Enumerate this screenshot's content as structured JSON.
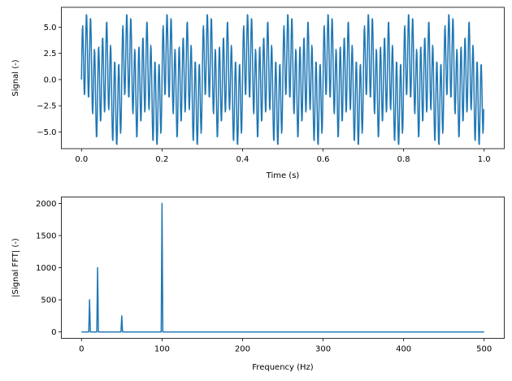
{
  "chart_data": [
    {
      "type": "line",
      "title": "",
      "xlabel": "Time (s)",
      "ylabel": "Signal (-)",
      "xlim": [
        -0.05,
        1.05
      ],
      "ylim": [
        -6.6,
        6.9
      ],
      "xticks": [
        "0.0",
        "0.2",
        "0.4",
        "0.6",
        "0.8",
        "1.0"
      ],
      "xtick_values": [
        0,
        0.2,
        0.4,
        0.6,
        0.8,
        1.0
      ],
      "yticks": [
        "−5.0",
        "−2.5",
        "0.0",
        "2.5",
        "5.0"
      ],
      "ytick_values": [
        -5,
        -2.5,
        0,
        2.5,
        5
      ],
      "sampling_rate_hz": 1000,
      "n_samples": 1000,
      "components": [
        {
          "frequency_hz": 10,
          "amplitude": 1
        },
        {
          "frequency_hz": 20,
          "amplitude": 2
        },
        {
          "frequency_hz": 50,
          "amplitude": 0.5
        },
        {
          "frequency_hz": 100,
          "amplitude": 4
        }
      ],
      "color": "#1f77b4",
      "grid": false
    },
    {
      "type": "line",
      "title": "",
      "xlabel": "Frequency (Hz)",
      "ylabel": "|Signal FFT| (-)",
      "xlim": [
        -25,
        525
      ],
      "ylim": [
        -100,
        2100
      ],
      "xticks": [
        "0",
        "100",
        "200",
        "300",
        "400",
        "500"
      ],
      "xtick_values": [
        0,
        100,
        200,
        300,
        400,
        500
      ],
      "yticks": [
        "0",
        "500",
        "1000",
        "1500",
        "2000"
      ],
      "ytick_values": [
        0,
        500,
        1000,
        1500,
        2000
      ],
      "x_range": [
        0,
        500
      ],
      "peaks": [
        {
          "frequency_hz": 10,
          "magnitude": 500
        },
        {
          "frequency_hz": 20,
          "magnitude": 1000
        },
        {
          "frequency_hz": 50,
          "magnitude": 250
        },
        {
          "frequency_hz": 100,
          "magnitude": 2000
        }
      ],
      "color": "#1f77b4",
      "grid": false
    }
  ]
}
